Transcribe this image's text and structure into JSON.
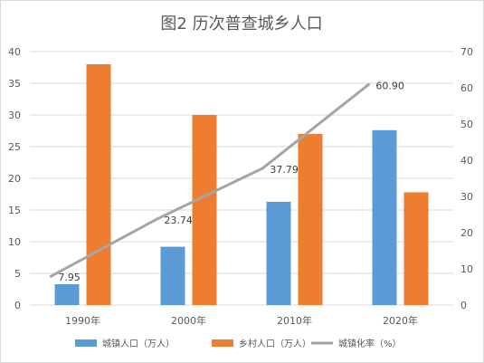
{
  "chart_data": {
    "type": "bar+line",
    "title": "图2  历次普查城乡人口",
    "categories": [
      "1990年",
      "2000年",
      "2010年",
      "2020年"
    ],
    "series": [
      {
        "name": "城镇人口（万人）",
        "type": "bar",
        "axis": "left",
        "color": "#5b9bd5",
        "values": [
          3.3,
          9.2,
          16.3,
          27.6
        ]
      },
      {
        "name": "乡村人口（万人）",
        "type": "bar",
        "axis": "left",
        "color": "#ed7d31",
        "values": [
          38.0,
          30.0,
          27.0,
          17.8
        ]
      },
      {
        "name": "城镇化率（%）",
        "type": "line",
        "axis": "right",
        "color": "#a5a5a5",
        "values": [
          7.95,
          23.74,
          37.79,
          60.9
        ],
        "labels": [
          "7.95",
          "23.74",
          "37.79",
          "60.90"
        ]
      }
    ],
    "y_left": {
      "min": 0,
      "max": 40,
      "ticks": [
        "0",
        "5",
        "10",
        "15",
        "20",
        "25",
        "30",
        "35",
        "40"
      ]
    },
    "y_right": {
      "min": 0,
      "max": 70,
      "ticks": [
        "0",
        "10",
        "20",
        "30",
        "40",
        "50",
        "60",
        "70"
      ]
    },
    "grid": true,
    "legend_position": "bottom"
  }
}
